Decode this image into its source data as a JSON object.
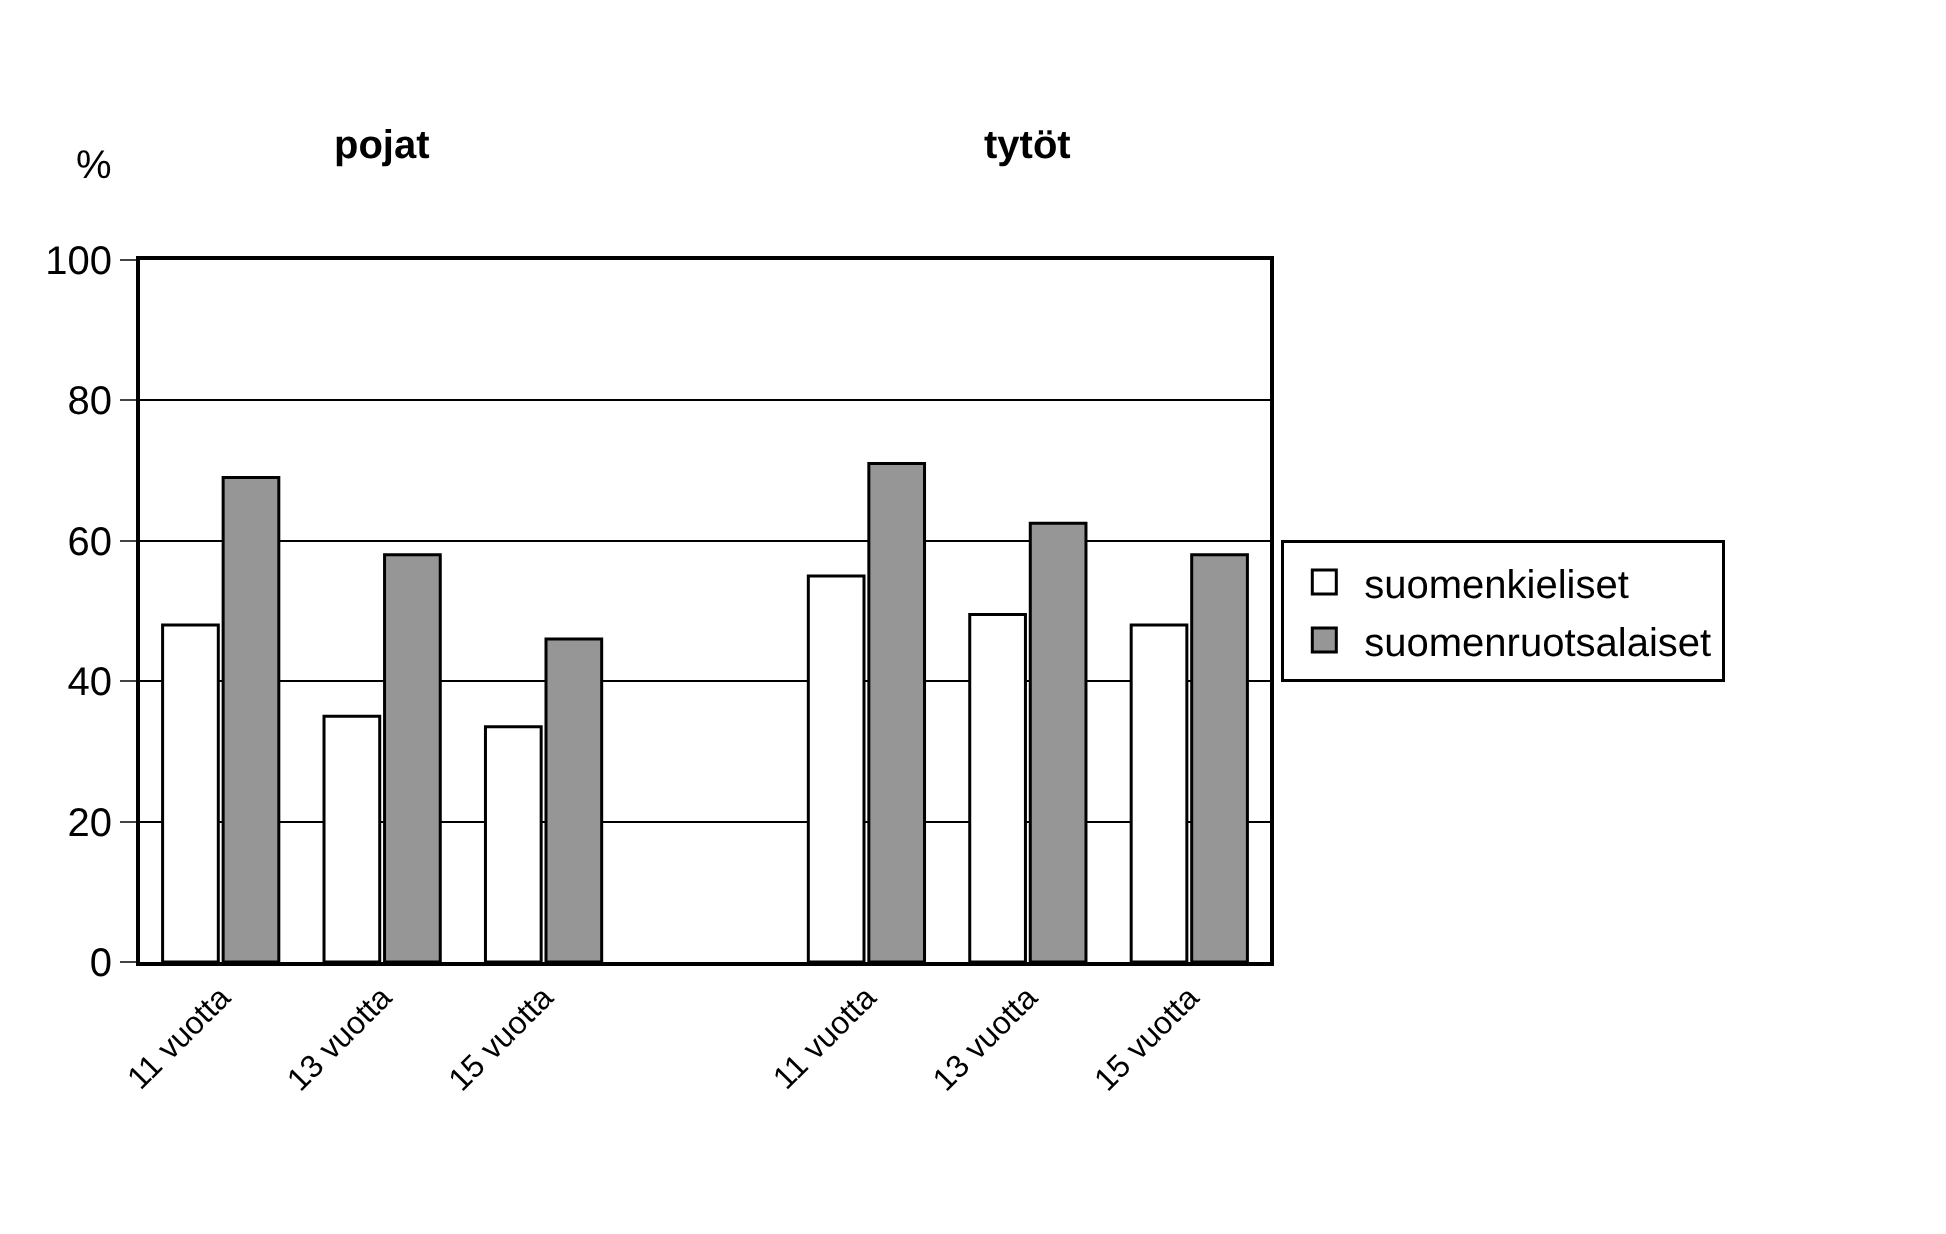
{
  "chart_data": {
    "type": "bar",
    "ylabel": "%",
    "annotations": [
      "pojat",
      "tytöt"
    ],
    "categories": [
      "11 vuotta",
      "13 vuotta",
      "15 vuotta",
      null,
      "11 vuotta",
      "13 vuotta",
      "15 vuotta"
    ],
    "series": [
      {
        "name": "suomenkieliset",
        "color": "#ffffff",
        "values": [
          48,
          35,
          33.5,
          null,
          55,
          49.5,
          48
        ]
      },
      {
        "name": "suomenruotsalaiset",
        "color": "#969696",
        "values": [
          69,
          58,
          46,
          null,
          71,
          62.5,
          58
        ]
      }
    ],
    "ylim": [
      0,
      100
    ],
    "yticks": [
      0,
      20,
      40,
      60,
      80,
      100
    ],
    "grid": "y",
    "legend": "right"
  }
}
